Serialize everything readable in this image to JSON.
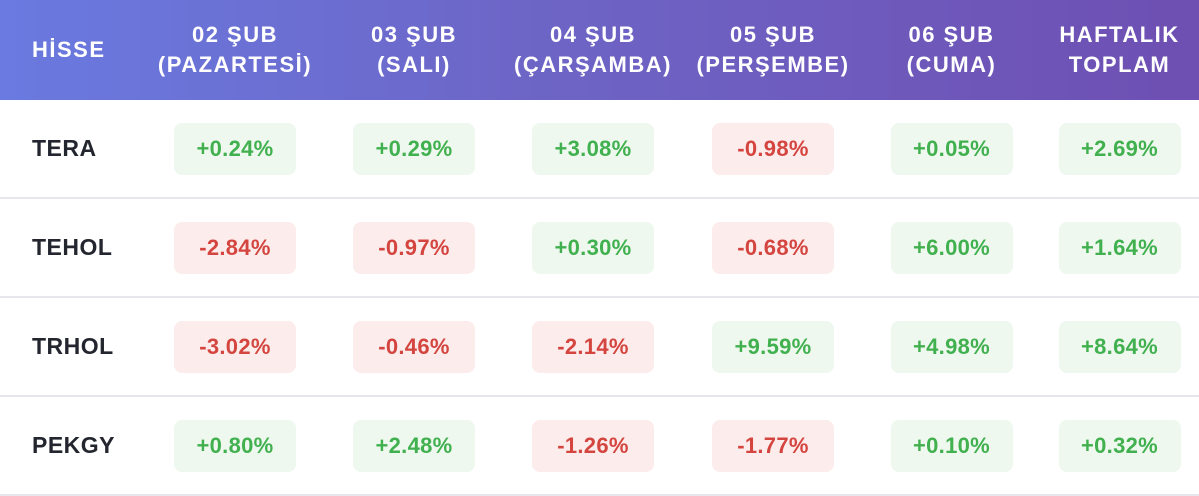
{
  "header": {
    "stock_label": "HİSSE",
    "days": [
      {
        "line1": "02 ŞUB",
        "line2": "(PAZARTESİ)"
      },
      {
        "line1": "03 ŞUB",
        "line2": "(SALI)"
      },
      {
        "line1": "04 ŞUB",
        "line2": "(ÇARŞAMBA)"
      },
      {
        "line1": "05 ŞUB",
        "line2": "(PERŞEMBE)"
      },
      {
        "line1": "06 ŞUB",
        "line2": "(CUMA)"
      }
    ],
    "total": {
      "line1": "HAFTALIK",
      "line2": "TOPLAM"
    }
  },
  "colors": {
    "positive_text": "#41b04f",
    "positive_bg": "#eef8ee",
    "negative_text": "#d4453f",
    "negative_bg": "#fcecec",
    "header_gradient_start": "#6a7ae0",
    "header_gradient_end": "#6e4fb2"
  },
  "rows": [
    {
      "ticker": "TERA",
      "values": [
        "+0.24%",
        "+0.29%",
        "+3.08%",
        "-0.98%",
        "+0.05%",
        "+2.69%"
      ]
    },
    {
      "ticker": "TEHOL",
      "values": [
        "-2.84%",
        "-0.97%",
        "+0.30%",
        "-0.68%",
        "+6.00%",
        "+1.64%"
      ]
    },
    {
      "ticker": "TRHOL",
      "values": [
        "-3.02%",
        "-0.46%",
        "-2.14%",
        "+9.59%",
        "+4.98%",
        "+8.64%"
      ]
    },
    {
      "ticker": "PEKGY",
      "values": [
        "+0.80%",
        "+2.48%",
        "-1.26%",
        "-1.77%",
        "+0.10%",
        "+0.32%"
      ]
    }
  ]
}
